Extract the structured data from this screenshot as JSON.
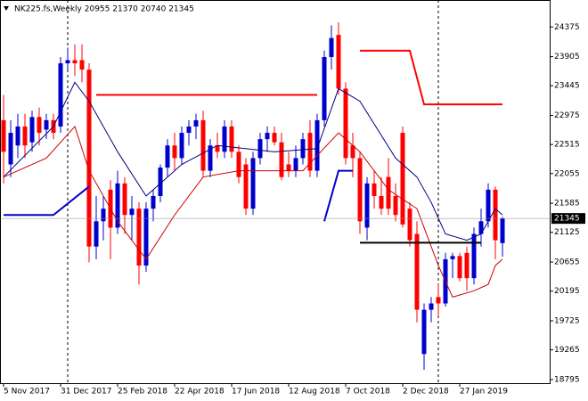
{
  "chart_data": {
    "type": "candlestick",
    "title": "NK225.fs,Weekly  20955 21370 20740 21345",
    "up_color": "#0000cc",
    "down_color": "#ff0000",
    "ylim": [
      18738,
      24802
    ],
    "yticks": [
      24375,
      23905,
      23445,
      22975,
      22515,
      22055,
      21585,
      21125,
      20655,
      20195,
      19725,
      19265,
      18795
    ],
    "categories": [
      "5 Nov 2017",
      null,
      null,
      null,
      null,
      null,
      null,
      null,
      "31 Dec 2017",
      null,
      null,
      null,
      null,
      null,
      null,
      null,
      "25 Feb 2018",
      null,
      null,
      null,
      null,
      null,
      null,
      null,
      "22 Apr 2018",
      null,
      null,
      null,
      null,
      null,
      null,
      null,
      "17 Jun 2018",
      null,
      null,
      null,
      null,
      null,
      null,
      null,
      "12 Aug 2018",
      null,
      null,
      null,
      null,
      null,
      null,
      null,
      "7 Oct 2018",
      null,
      null,
      null,
      null,
      null,
      null,
      null,
      "2 Dec 2018",
      null,
      null,
      null,
      null,
      null,
      null,
      null,
      "27 Jan 2019",
      null,
      null,
      null,
      null,
      null,
      null
    ],
    "open": [
      22900,
      22200,
      22500,
      22800,
      22550,
      22950,
      22750,
      22900,
      22800,
      23800,
      23850,
      23850,
      23700,
      20900,
      21300,
      21800,
      21200,
      21900,
      21400,
      21500,
      20600,
      21500,
      21700,
      22150,
      22500,
      22300,
      22700,
      22800,
      22900,
      22100,
      22500,
      22400,
      22800,
      22400,
      22200,
      21500,
      22300,
      22600,
      22700,
      22550,
      22200,
      22100,
      22300,
      22700,
      22100,
      22900,
      23900,
      24250,
      23400,
      22500,
      22300,
      21200,
      21900,
      21700,
      22000,
      21700,
      22700,
      21500,
      21100,
      19200,
      19900,
      20100,
      20000,
      20700,
      20750,
      20800,
      20400,
      21100,
      21300,
      21800,
      20955
    ],
    "high": [
      23300,
      22900,
      23000,
      23000,
      23050,
      23100,
      23000,
      23000,
      23900,
      24050,
      24100,
      24100,
      23800,
      21700,
      21700,
      21950,
      22100,
      22000,
      21700,
      21600,
      21600,
      21800,
      22200,
      22600,
      22700,
      22800,
      22900,
      23000,
      23050,
      22600,
      22700,
      22900,
      22900,
      22500,
      22300,
      22400,
      22700,
      22800,
      22800,
      22700,
      22400,
      22500,
      22700,
      22900,
      23000,
      24000,
      24400,
      24450,
      23500,
      22700,
      22400,
      22000,
      22100,
      22000,
      22300,
      21900,
      22800,
      21600,
      21300,
      20000,
      20100,
      20300,
      20800,
      20800,
      20800,
      20900,
      21200,
      21500,
      21900,
      21850,
      21370
    ],
    "low": [
      21900,
      22000,
      22300,
      22300,
      22400,
      22500,
      22600,
      22600,
      22700,
      23700,
      23600,
      23500,
      20650,
      20700,
      21000,
      20700,
      21100,
      21100,
      21000,
      20300,
      20500,
      21300,
      21600,
      22000,
      22100,
      22200,
      22500,
      22600,
      22000,
      22000,
      22300,
      22300,
      22300,
      21900,
      21400,
      21400,
      22200,
      22400,
      22500,
      21950,
      22000,
      22000,
      22200,
      22000,
      22000,
      22800,
      23700,
      23300,
      22200,
      22000,
      21100,
      21000,
      21500,
      21400,
      21400,
      21300,
      21200,
      20900,
      19700,
      18950,
      19700,
      19800,
      19950,
      20400,
      20350,
      20200,
      20300,
      20900,
      21200,
      20700,
      20740
    ],
    "close": [
      22400,
      22700,
      22800,
      22500,
      22950,
      22700,
      22900,
      22700,
      23800,
      23850,
      23800,
      23700,
      20900,
      21300,
      21500,
      21200,
      21900,
      21400,
      21500,
      20600,
      21500,
      21700,
      22150,
      22500,
      22300,
      22700,
      22800,
      22900,
      22100,
      22500,
      22400,
      22800,
      22400,
      22000,
      21500,
      22300,
      22600,
      22700,
      22550,
      22000,
      22100,
      22300,
      22600,
      22100,
      22900,
      23900,
      24200,
      23400,
      22300,
      22300,
      21300,
      21900,
      21700,
      21500,
      21500,
      21400,
      21250,
      21000,
      19900,
      19900,
      20000,
      20000,
      20700,
      20750,
      20400,
      20400,
      21100,
      21300,
      21800,
      21000,
      21345
    ],
    "separators": [
      9,
      61
    ],
    "overlays": [
      {
        "color": "#000080",
        "width": 1,
        "points": [
          [
            0,
            22000
          ],
          [
            7,
            22800
          ],
          [
            10,
            23500
          ],
          [
            12,
            23200
          ],
          [
            16,
            22400
          ],
          [
            20,
            21700
          ],
          [
            25,
            22200
          ],
          [
            30,
            22500
          ],
          [
            38,
            22400
          ],
          [
            44,
            22450
          ],
          [
            47,
            23400
          ],
          [
            50,
            23200
          ],
          [
            55,
            22300
          ],
          [
            58,
            22000
          ],
          [
            60,
            21600
          ],
          [
            62,
            21100
          ],
          [
            65,
            21000
          ],
          [
            67,
            21100
          ],
          [
            69,
            21500
          ],
          [
            70,
            21400
          ]
        ]
      },
      {
        "color": "#cc0000",
        "width": 1,
        "points": [
          [
            0,
            22000
          ],
          [
            6,
            22300
          ],
          [
            10,
            22800
          ],
          [
            12,
            22100
          ],
          [
            16,
            21300
          ],
          [
            20,
            20700
          ],
          [
            24,
            21400
          ],
          [
            28,
            22000
          ],
          [
            33,
            22100
          ],
          [
            42,
            22100
          ],
          [
            47,
            22700
          ],
          [
            50,
            22400
          ],
          [
            54,
            21800
          ],
          [
            58,
            21500
          ],
          [
            61,
            20600
          ],
          [
            63,
            20100
          ],
          [
            66,
            20200
          ],
          [
            68,
            20300
          ],
          [
            69,
            20600
          ],
          [
            70,
            20700
          ]
        ]
      },
      {
        "color": "#ff0000",
        "width": 2,
        "points": [
          [
            13,
            23300
          ],
          [
            44,
            23300
          ]
        ]
      },
      {
        "color": "#ff0000",
        "width": 2,
        "points": [
          [
            50,
            24000
          ],
          [
            57,
            24000
          ],
          [
            59,
            23150
          ],
          [
            70,
            23150
          ]
        ]
      },
      {
        "color": "#0000cc",
        "width": 2,
        "points": [
          [
            0,
            21400
          ],
          [
            7,
            21400
          ],
          [
            12,
            21850
          ]
        ]
      },
      {
        "color": "#0000cc",
        "width": 2,
        "points": [
          [
            45,
            21300
          ],
          [
            47,
            22100
          ],
          [
            49,
            22100
          ]
        ]
      },
      {
        "color": "#000000",
        "width": 2,
        "points": [
          [
            50,
            20960
          ],
          [
            67,
            20960
          ]
        ]
      }
    ]
  }
}
